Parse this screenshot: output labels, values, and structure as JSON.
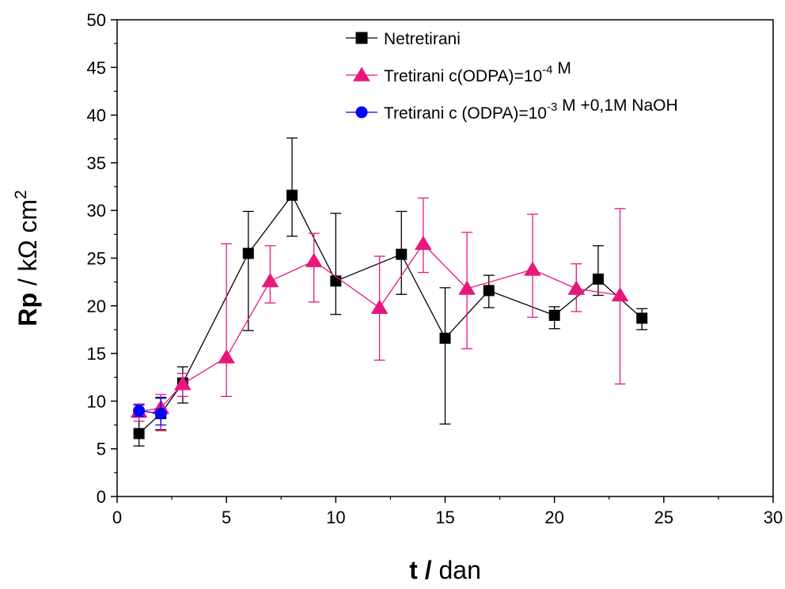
{
  "chart_data": {
    "type": "scatter",
    "xlabel": {
      "bold": "t /",
      "rest": " dan"
    },
    "ylabel": {
      "bold": "Rp",
      "rest": " / kΩ cm",
      "sup": "2"
    },
    "xlim": [
      0,
      30
    ],
    "ylim": [
      0,
      50
    ],
    "xticks": [
      0,
      5,
      10,
      15,
      20,
      25,
      30
    ],
    "yticks": [
      0,
      5,
      10,
      15,
      20,
      25,
      30,
      35,
      40,
      45,
      50
    ],
    "grid": false,
    "legend_position": "top-right",
    "series": [
      {
        "name": "Netretirani",
        "name_parts": [
          {
            "t": "Netretirani"
          }
        ],
        "color": "#000000",
        "marker": "square",
        "points": [
          {
            "x": 1,
            "y": 6.6,
            "lo": 5.3,
            "hi": 8.5
          },
          {
            "x": 2,
            "y": 8.7,
            "lo": 7.0,
            "hi": 10.4
          },
          {
            "x": 3,
            "y": 11.9,
            "lo": 9.8,
            "hi": 13.6
          },
          {
            "x": 6,
            "y": 25.5,
            "lo": 17.4,
            "hi": 29.9
          },
          {
            "x": 8,
            "y": 31.6,
            "lo": 27.3,
            "hi": 37.6
          },
          {
            "x": 10,
            "y": 22.6,
            "lo": 19.1,
            "hi": 29.7
          },
          {
            "x": 13,
            "y": 25.4,
            "lo": 21.2,
            "hi": 29.9
          },
          {
            "x": 15,
            "y": 16.6,
            "lo": 7.6,
            "hi": 21.9
          },
          {
            "x": 17,
            "y": 21.6,
            "lo": 19.8,
            "hi": 23.2
          },
          {
            "x": 20,
            "y": 19.0,
            "lo": 17.6,
            "hi": 19.9
          },
          {
            "x": 22,
            "y": 22.8,
            "lo": 21.1,
            "hi": 26.3
          },
          {
            "x": 24,
            "y": 18.7,
            "lo": 17.5,
            "hi": 19.7
          }
        ]
      },
      {
        "name": "Tretirani c(ODPA)=10-4 M",
        "name_parts": [
          {
            "t": "Tretirani c(ODPA)=10"
          },
          {
            "t": "-4",
            "sup": true
          },
          {
            "t": " M"
          }
        ],
        "color": "#e8177d",
        "marker": "triangle",
        "points": [
          {
            "x": 1,
            "y": 8.9,
            "lo": 7.9,
            "hi": 9.7
          },
          {
            "x": 2,
            "y": 9.3,
            "lo": 6.9,
            "hi": 10.7
          },
          {
            "x": 3,
            "y": 11.8,
            "lo": 10.5,
            "hi": 12.9
          },
          {
            "x": 5,
            "y": 14.6,
            "lo": 10.5,
            "hi": 26.5
          },
          {
            "x": 7,
            "y": 22.6,
            "lo": 20.3,
            "hi": 26.3
          },
          {
            "x": 9,
            "y": 24.7,
            "lo": 20.4,
            "hi": 27.6
          },
          {
            "x": 12,
            "y": 19.8,
            "lo": 14.3,
            "hi": 25.2
          },
          {
            "x": 14,
            "y": 26.5,
            "lo": 23.5,
            "hi": 31.3
          },
          {
            "x": 16,
            "y": 21.8,
            "lo": 15.5,
            "hi": 27.7
          },
          {
            "x": 19,
            "y": 23.8,
            "lo": 18.8,
            "hi": 29.6
          },
          {
            "x": 21,
            "y": 21.8,
            "lo": 19.4,
            "hi": 24.4
          },
          {
            "x": 23,
            "y": 21.1,
            "lo": 11.8,
            "hi": 30.2
          }
        ]
      },
      {
        "name": "Tretirani c (ODPA)=10-3 M +0,1M NaOH",
        "name_parts": [
          {
            "t": "Tretirani c (ODPA)=10"
          },
          {
            "t": "-3",
            "sup": true
          },
          {
            "t": " M +0,1M NaOH"
          }
        ],
        "color": "#0000ff",
        "marker": "circle",
        "points": [
          {
            "x": 1,
            "y": 9.0,
            "lo": 8.4,
            "hi": 9.6
          },
          {
            "x": 2,
            "y": 8.7,
            "lo": 7.5,
            "hi": 10.3
          }
        ]
      }
    ]
  }
}
